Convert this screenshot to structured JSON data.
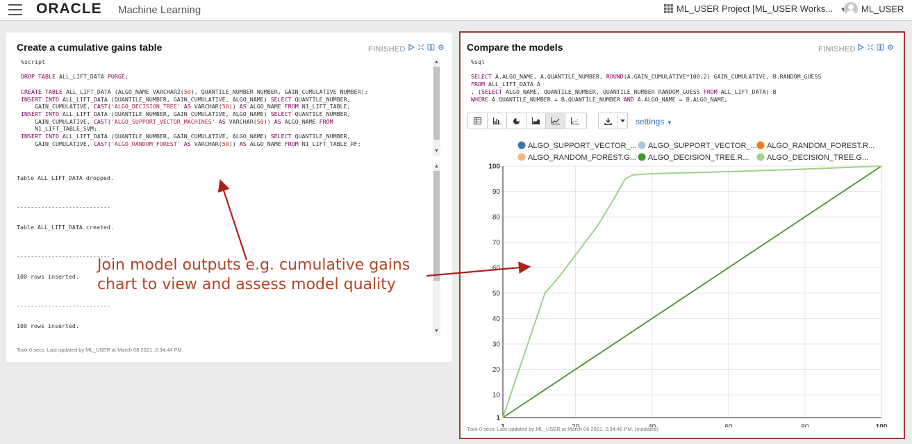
{
  "header": {
    "logo": "ORACLE",
    "app_name": "Machine Learning",
    "project": "ML_USER Project [ML_USER Works...",
    "user": "ML_USER"
  },
  "left": {
    "title": "Create a cumulative gains table",
    "status": "FINISHED",
    "code_lines": [
      "%script",
      "",
      "DROP TABLE ALL_LIFT_DATA PURGE;",
      "",
      "CREATE TABLE ALL_LIFT_DATA (ALGO_NAME VARCHAR2(50), QUANTILE_NUMBER NUMBER, GAIN_CUMULATIVE NUMBER);",
      "INSERT INTO ALL_LIFT_DATA (QUANTILE_NUMBER, GAIN_CUMULATIVE, ALGO_NAME) SELECT QUANTILE_NUMBER,",
      "    GAIN_CUMULATIVE, CAST('ALGO_DECISION_TREE' AS VARCHAR(50)) AS ALGO_NAME FROM N1_LIFT_TABLE;",
      "INSERT INTO ALL_LIFT_DATA (QUANTILE_NUMBER, GAIN_CUMULATIVE, ALGO_NAME) SELECT QUANTILE_NUMBER,",
      "    GAIN_CUMULATIVE, CAST('ALGO_SUPPORT_VECTOR_MACHINES' AS VARCHAR(50)) AS ALGO_NAME FROM",
      "    N1_LIFT_TABLE_SVM;",
      "INSERT INTO ALL_LIFT_DATA (QUANTILE_NUMBER, GAIN_CUMULATIVE, ALGO_NAME) SELECT QUANTILE_NUMBER,",
      "    GAIN_CUMULATIVE, CAST('ALGO_RANDOM_FOREST' AS VARCHAR(50)) AS ALGO_NAME FROM N1_LIFT_TABLE_RF;"
    ],
    "output": {
      "line1": "Table ALL_LIFT_DATA dropped.",
      "sep1": "---------------------------",
      "line2": "Table ALL_LIFT_DATA created.",
      "sep2": "---------------------------",
      "line3": "100 rows inserted.",
      "sep3": "---------------------------",
      "line4": "100 rows inserted."
    },
    "footer": "Took 0 secs. Last updated by ML_USER at March 08 2021, 2:34:44 PM."
  },
  "right": {
    "title": "Compare the models",
    "status": "FINISHED",
    "code_lines": [
      "%sql",
      "",
      "SELECT A.ALGO_NAME, A.QUANTILE_NUMBER, ROUND(A.GAIN_CUMULATIVE*100,2) GAIN_CUMULATIVE, B.RANDOM_GUESS",
      "FROM ALL_LIFT_DATA A",
      ", (SELECT ALGO_NAME, QUANTILE_NUMBER, QUANTILE_NUMBER RANDOM_GUESS FROM ALL_LIFT_DATA) B",
      "WHERE A.QUANTILE_NUMBER = B.QUANTILE_NUMBER AND A.ALGO_NAME = B.ALGO_NAME;"
    ],
    "settings_label": "settings",
    "footer": "Took 0 secs. Last updated by ML_USER at March 08 2021, 2:34:46 PM. (outdated)"
  },
  "annotation": {
    "line1": "Join model outputs e.g. cumulative gains",
    "line2": "chart to view and assess model quality"
  },
  "chart_data": {
    "type": "line",
    "x_ticks": [
      1,
      20,
      40,
      60,
      80,
      100
    ],
    "y_ticks": [
      1,
      10,
      20,
      30,
      40,
      50,
      60,
      70,
      80,
      90,
      100
    ],
    "xlim": [
      1,
      100
    ],
    "ylim": [
      1,
      100
    ],
    "grid": true,
    "legend_position": "top",
    "series": [
      {
        "name": "ALGO_SUPPORT_VECTOR_...",
        "color": "#3b76b3",
        "x": [
          1,
          100
        ],
        "y": [
          1,
          100
        ]
      },
      {
        "name": "ALGO_SUPPORT_VECTOR_...",
        "color": "#a8c6e6",
        "x": [
          1,
          100
        ],
        "y": [
          1,
          100
        ]
      },
      {
        "name": "ALGO_RANDOM_FOREST.R...",
        "color": "#ee7c1e",
        "x": [
          1,
          100
        ],
        "y": [
          1,
          100
        ]
      },
      {
        "name": "ALGO_RANDOM_FOREST.G...",
        "color": "#f5b77f",
        "x": [
          1,
          12,
          16,
          21,
          26,
          30,
          33,
          35,
          40,
          60,
          80,
          100
        ],
        "y": [
          1,
          50,
          57,
          67,
          77,
          87,
          95,
          96.5,
          97,
          97.8,
          98.8,
          100
        ]
      },
      {
        "name": "ALGO_DECISION_TREE.R...",
        "color": "#3e9a2f",
        "x": [
          1,
          100
        ],
        "y": [
          1,
          100
        ]
      },
      {
        "name": "ALGO_DECISION_TREE.G...",
        "color": "#9ed389",
        "x": [
          1,
          12,
          16,
          21,
          26,
          30,
          33,
          35,
          40,
          60,
          80,
          100
        ],
        "y": [
          1,
          50,
          57,
          67,
          77,
          87,
          95,
          96.5,
          97,
          97.8,
          98.8,
          100
        ]
      }
    ]
  }
}
